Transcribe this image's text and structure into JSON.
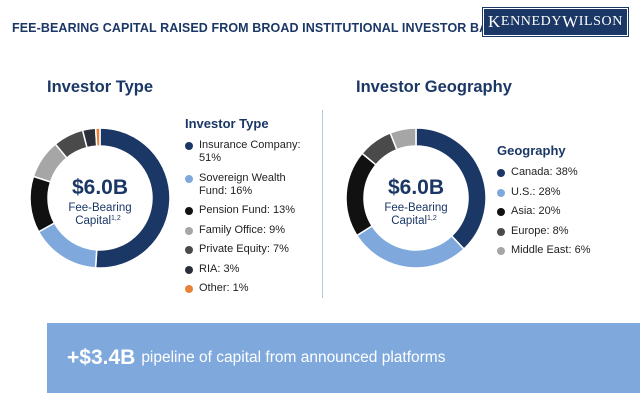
{
  "header": {
    "title": "FEE-BEARING CAPITAL RAISED FROM BROAD INSTITUTIONAL INVESTOR BASE"
  },
  "logo": {
    "k": "K",
    "ennedy": "ENNEDY",
    "w": "W",
    "ilson": "ILSON"
  },
  "colors": {
    "navy": "#1b3766",
    "light_blue": "#7fa9dc",
    "black": "#111111",
    "gray": "#a6a6a6",
    "dark_gray": "#4a4a4a",
    "charcoal": "#2b2f3a",
    "orange": "#e8823a"
  },
  "chart_data": [
    {
      "type": "pie",
      "title": "Investor Type",
      "center_value": "$6.0B",
      "center_label_line1": "Fee-Bearing",
      "center_label_line2": "Capital",
      "center_superscript": "1,2",
      "legend_title": "Investor Type",
      "legend_placement": "right",
      "slices": [
        {
          "label": "Insurance Company: 51%",
          "name": "Insurance Company",
          "value": 51,
          "color": "#1b3766"
        },
        {
          "label": "Sovereign Wealth Fund: 16%",
          "name": "Sovereign Wealth Fund",
          "value": 16,
          "color": "#7fa9dc"
        },
        {
          "label": "Pension Fund: 13%",
          "name": "Pension Fund",
          "value": 13,
          "color": "#111111"
        },
        {
          "label": "Family Office: 9%",
          "name": "Family Office",
          "value": 9,
          "color": "#a6a6a6"
        },
        {
          "label": "Private Equity: 7%",
          "name": "Private Equity",
          "value": 7,
          "color": "#4a4a4a"
        },
        {
          "label": "RIA: 3%",
          "name": "RIA",
          "value": 3,
          "color": "#2b2f3a"
        },
        {
          "label": "Other: 1%",
          "name": "Other",
          "value": 1,
          "color": "#e8823a"
        }
      ]
    },
    {
      "type": "pie",
      "title": "Investor Geography",
      "center_value": "$6.0B",
      "center_label_line1": "Fee-Bearing",
      "center_label_line2": "Capital",
      "center_superscript": "1,2",
      "legend_title": "Geography",
      "legend_placement": "right",
      "slices": [
        {
          "label": "Canada: 38%",
          "name": "Canada",
          "value": 38,
          "color": "#1b3766"
        },
        {
          "label": "U.S.: 28%",
          "name": "U.S.",
          "value": 28,
          "color": "#7fa9dc"
        },
        {
          "label": "Asia: 20%",
          "name": "Asia",
          "value": 20,
          "color": "#111111"
        },
        {
          "label": "Europe: 8%",
          "name": "Europe",
          "value": 8,
          "color": "#4a4a4a"
        },
        {
          "label": "Middle East: 6%",
          "name": "Middle East",
          "value": 6,
          "color": "#a6a6a6"
        }
      ]
    }
  ],
  "banner": {
    "amount": "+$3.4B",
    "text": "pipeline of capital from announced platforms"
  }
}
